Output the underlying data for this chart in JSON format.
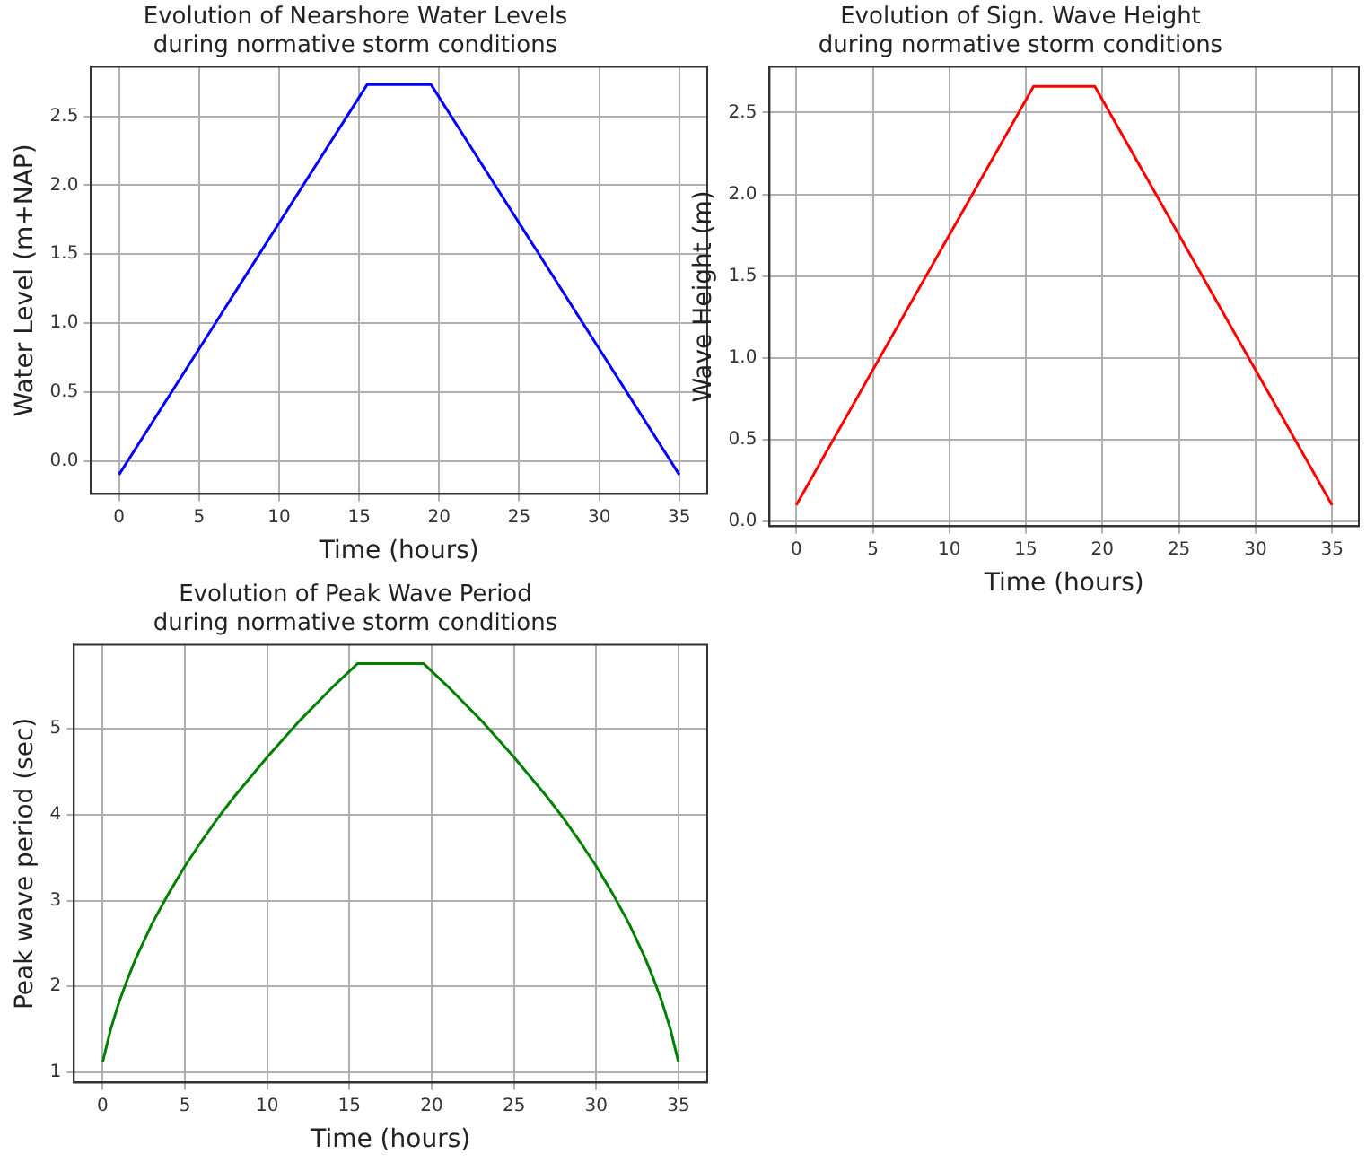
{
  "chart_data": [
    {
      "type": "line",
      "title": "Evolution of Nearshore Water Levels\nduring normative storm conditions",
      "xlabel": "Time (hours)",
      "ylabel": "Water Level (m+NAP)",
      "x": [
        0,
        15.5,
        19.5,
        35
      ],
      "series": [
        {
          "color": "#0000ff",
          "values": [
            -0.1,
            2.73,
            2.73,
            -0.1
          ]
        }
      ],
      "xlim": [
        -1.75,
        36.75
      ],
      "xticks": [
        0,
        5,
        10,
        15,
        20,
        25,
        30,
        35
      ],
      "ylim": [
        -0.24,
        2.86
      ],
      "yticks": [
        {
          "value": 0,
          "label": "0.0"
        },
        0.5,
        {
          "value": 1,
          "label": "1.0"
        },
        1.5,
        {
          "value": 2,
          "label": "2.0"
        },
        2.5
      ],
      "grid": true,
      "legend": false
    },
    {
      "type": "line",
      "title": "Evolution of Sign. Wave Height\nduring normative storm conditions",
      "xlabel": "Time (hours)",
      "ylabel": "Wave Height (m)",
      "x": [
        0,
        15.5,
        19.5,
        35
      ],
      "series": [
        {
          "color": "#ff0000",
          "values": [
            0.1,
            2.66,
            2.66,
            0.1
          ]
        }
      ],
      "xlim": [
        -1.75,
        36.75
      ],
      "xticks": [
        0,
        5,
        10,
        15,
        20,
        25,
        30,
        35
      ],
      "ylim": [
        -0.03,
        2.78
      ],
      "yticks": [
        {
          "value": 0,
          "label": "0.0"
        },
        0.5,
        {
          "value": 1,
          "label": "1.0"
        },
        1.5,
        {
          "value": 2,
          "label": "2.0"
        },
        2.5
      ],
      "grid": true,
      "legend": false
    },
    {
      "type": "line",
      "title": "Evolution of Peak Wave Period\nduring normative storm conditions",
      "xlabel": "Time (hours)",
      "ylabel": "Peak wave period (sec)",
      "x": [
        0,
        0.5,
        1,
        1.5,
        2,
        3,
        4,
        5,
        6,
        7,
        8,
        10,
        12,
        14,
        15.5,
        19.5,
        21,
        23,
        25,
        27,
        28,
        29,
        30,
        31,
        32,
        33,
        33.5,
        34,
        34.5,
        35
      ],
      "series": [
        {
          "color": "#008000",
          "values": [
            1.12,
            1.51,
            1.82,
            2.08,
            2.32,
            2.73,
            3.08,
            3.4,
            3.69,
            3.96,
            4.21,
            4.67,
            5.1,
            5.49,
            5.76,
            5.76,
            5.49,
            5.1,
            4.67,
            4.21,
            3.96,
            3.69,
            3.4,
            3.08,
            2.73,
            2.32,
            2.08,
            1.82,
            1.51,
            1.12
          ]
        }
      ],
      "xlim": [
        -1.75,
        36.75
      ],
      "xticks": [
        0,
        5,
        10,
        15,
        20,
        25,
        30,
        35
      ],
      "ylim": [
        0.88,
        5.98
      ],
      "yticks": [
        1,
        2,
        3,
        4,
        5
      ],
      "grid": true,
      "legend": false
    }
  ]
}
